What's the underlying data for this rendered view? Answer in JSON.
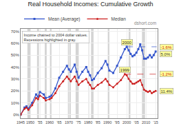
{
  "chart_data": {
    "type": "line",
    "title": "Real Household Incomes: Cumulative Growth",
    "subtitle": "dshort.com",
    "x": [
      1945,
      1947,
      1948,
      1949,
      1951,
      1953,
      1954,
      1955,
      1957,
      1958,
      1960,
      1961,
      1963,
      1965,
      1967,
      1969,
      1970,
      1971,
      1973,
      1974,
      1975,
      1977,
      1979,
      1980,
      1981,
      1982,
      1983,
      1985,
      1987,
      1989,
      1990,
      1991,
      1993,
      1995,
      1997,
      1999,
      2000,
      2001,
      2002,
      2003,
      2004,
      2005,
      2006,
      2007,
      2008,
      2009,
      2010,
      2011,
      2012,
      2013,
      2014,
      2015
    ],
    "series": [
      {
        "name": "Mean (Average)",
        "color": "#3355cc",
        "marker": "square",
        "values": [
          0,
          6,
          7,
          5,
          10,
          17,
          15,
          19,
          17,
          14,
          15,
          16,
          22,
          31,
          36,
          41,
          38,
          36,
          42,
          36,
          31,
          36,
          40,
          36,
          33,
          29,
          30,
          35,
          39,
          45,
          42,
          37,
          35,
          41,
          48,
          55,
          57,
          54,
          51,
          49,
          50,
          52,
          55,
          59,
          54,
          47,
          47,
          48,
          50,
          48,
          50,
          53
        ]
      },
      {
        "name": "Median",
        "color": "#cc2222",
        "marker": "circle",
        "values": [
          0,
          5,
          6,
          4,
          8,
          14,
          13,
          16,
          14,
          12,
          13,
          14,
          18,
          24,
          28,
          32,
          30,
          28,
          32,
          28,
          25,
          28,
          30,
          27,
          25,
          22,
          22,
          25,
          27,
          30,
          28,
          25,
          23,
          26,
          29,
          34,
          33,
          30,
          28,
          26,
          26,
          27,
          28,
          29,
          25,
          21,
          20,
          19,
          20,
          18,
          19,
          20
        ]
      }
    ],
    "xlim": [
      1945,
      2016
    ],
    "ylim": [
      -3,
      72
    ],
    "xticks": [
      1945,
      1950,
      {
        "value": 1955,
        "label": "'55"
      },
      1960,
      {
        "value": 1965,
        "label": "'65"
      },
      1970,
      {
        "value": 1975,
        "label": "'75"
      },
      1980,
      {
        "value": 1985,
        "label": "'85"
      },
      1990,
      {
        "value": 1995,
        "label": "'95"
      },
      2000,
      {
        "value": 2005,
        "label": "'05"
      },
      2010,
      {
        "value": 2015,
        "label": "'15"
      }
    ],
    "yticks": [
      {
        "value": 0,
        "label": "0%"
      },
      {
        "value": 10,
        "label": "10%"
      },
      {
        "value": 20,
        "label": "20%"
      },
      {
        "value": 30,
        "label": "30%"
      },
      {
        "value": 40,
        "label": "40%"
      },
      {
        "value": 50,
        "label": "50%"
      },
      {
        "value": 60,
        "label": "60%"
      },
      {
        "value": 70,
        "label": "70%"
      }
    ],
    "grid": true,
    "legend": "top",
    "recession_bands": [
      [
        1948.5,
        1950
      ],
      [
        1953.5,
        1954.5
      ],
      [
        1957.5,
        1958.5
      ],
      [
        1960,
        1961
      ],
      [
        1969.5,
        1971
      ],
      [
        1973.5,
        1975
      ],
      [
        1980,
        1980.5
      ],
      [
        1981.5,
        1982.8
      ],
      [
        1990,
        1991
      ],
      [
        2001,
        2001.9
      ],
      [
        2007.9,
        2009.5
      ]
    ],
    "recession_color": "#cccccc",
    "peak_lines": [
      {
        "x": 2000,
        "x_end": 2015.5,
        "y": 57,
        "color": "#3355cc",
        "line_style": "dashed"
      },
      {
        "x": 1999,
        "x_end": 2015.5,
        "y": 34,
        "color": "#cc2222",
        "line_style": "dashed"
      }
    ],
    "annotations": [
      {
        "text": "2000",
        "x": 2000,
        "y": 57
      },
      {
        "text": "1999",
        "x": 1999,
        "y": 34
      }
    ],
    "end_labels": [
      {
        "text": "-1.6%",
        "y": 57,
        "color": "#cc2200"
      },
      {
        "text": "5.0%",
        "y": 53,
        "color": "#333333"
      },
      {
        "text": "-1.2%",
        "y": 34,
        "color": "#cc2200"
      },
      {
        "text": "11.4%",
        "y": 20,
        "color": "#333333"
      }
    ],
    "annotation_bg": "#ffff99",
    "note": [
      "Income chained to 2004 dollar values.",
      "Recessions highlighted in gray."
    ]
  }
}
